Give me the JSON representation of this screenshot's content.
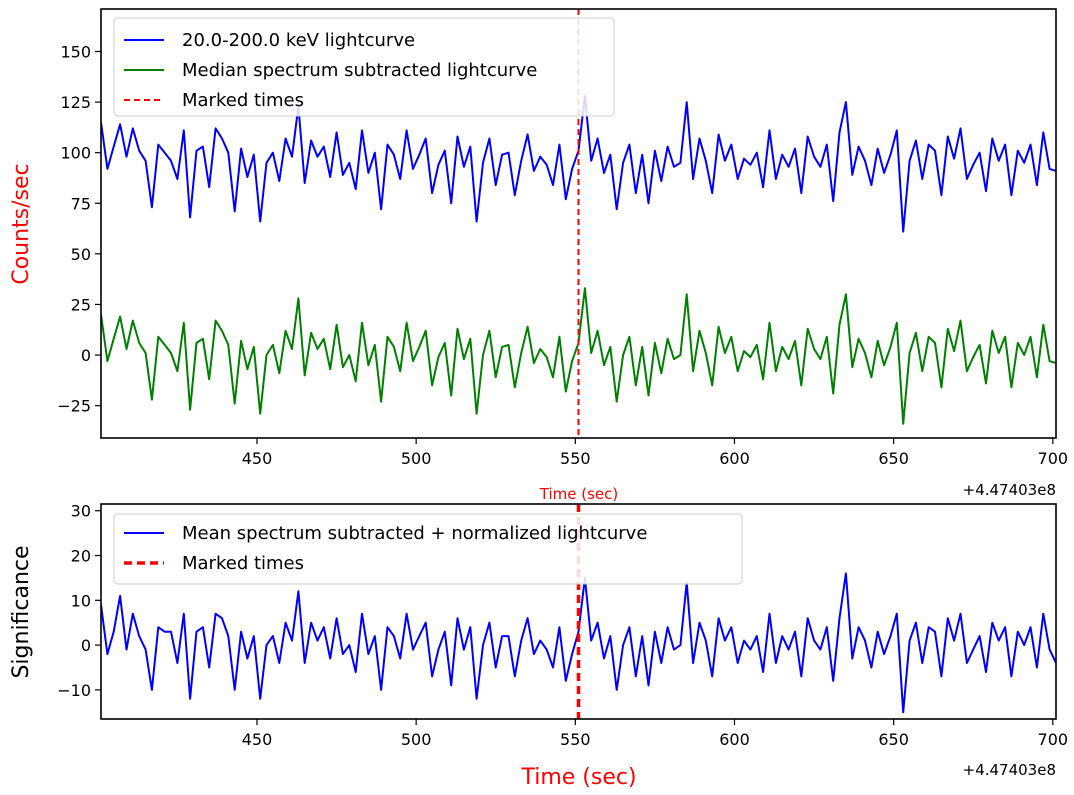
{
  "chart_data": [
    {
      "type": "line",
      "ylabel": "Counts/sec",
      "xlabel": "Time (sec)",
      "x_offset_label": "+4.47403e8",
      "xlim": [
        401,
        701
      ],
      "ylim": [
        -41,
        171
      ],
      "x_ticks": [
        450,
        500,
        550,
        600,
        650,
        700
      ],
      "y_ticks": [
        -25,
        0,
        25,
        50,
        75,
        100,
        125,
        150
      ],
      "y_tick_labels": [
        "−25",
        "0",
        "25",
        "50",
        "75",
        "100",
        "125",
        "150"
      ],
      "grid": false,
      "legend_position": "top-left",
      "legend": [
        "20.0-200.0 keV lightcurve",
        "Median spectrum subtracted lightcurve",
        "Marked times"
      ],
      "marked_time": 551,
      "x": [
        401,
        403,
        405,
        407,
        409,
        411,
        413,
        415,
        417,
        419,
        421,
        423,
        425,
        427,
        429,
        431,
        433,
        435,
        437,
        439,
        441,
        443,
        445,
        447,
        449,
        451,
        453,
        455,
        457,
        459,
        461,
        463,
        465,
        467,
        469,
        471,
        473,
        475,
        477,
        479,
        481,
        483,
        485,
        487,
        489,
        491,
        493,
        495,
        497,
        499,
        501,
        503,
        505,
        507,
        509,
        511,
        513,
        515,
        517,
        519,
        521,
        523,
        525,
        527,
        529,
        531,
        533,
        535,
        537,
        539,
        541,
        543,
        545,
        547,
        549,
        551,
        553,
        555,
        557,
        559,
        561,
        563,
        565,
        567,
        569,
        571,
        573,
        575,
        577,
        579,
        581,
        583,
        585,
        587,
        589,
        591,
        593,
        595,
        597,
        599,
        601,
        603,
        605,
        607,
        609,
        611,
        613,
        615,
        617,
        619,
        621,
        623,
        625,
        627,
        629,
        631,
        633,
        635,
        637,
        639,
        641,
        643,
        645,
        647,
        649,
        651,
        653,
        655,
        657,
        659,
        661,
        663,
        665,
        667,
        669,
        671,
        673,
        675,
        677,
        679,
        681,
        683,
        685,
        687,
        689,
        691,
        693,
        695,
        697,
        699,
        701
      ],
      "series": [
        {
          "name": "20.0-200.0 keV lightcurve",
          "color": "#0000ff",
          "values": [
            115,
            92,
            103,
            114,
            98,
            112,
            101,
            96,
            73,
            104,
            100,
            96,
            87,
            111,
            68,
            101,
            103,
            83,
            112,
            107,
            100,
            71,
            102,
            88,
            99,
            66,
            95,
            100,
            86,
            107,
            98,
            123,
            85,
            106,
            98,
            103,
            88,
            110,
            89,
            95,
            82,
            111,
            90,
            100,
            72,
            104,
            99,
            87,
            111,
            92,
            99,
            107,
            80,
            94,
            101,
            75,
            108,
            93,
            103,
            66,
            95,
            107,
            84,
            99,
            100,
            79,
            96,
            109,
            91,
            98,
            94,
            84,
            104,
            77,
            92,
            101,
            128,
            96,
            107,
            90,
            99,
            72,
            95,
            104,
            80,
            99,
            75,
            101,
            86,
            103,
            93,
            95,
            125,
            87,
            107,
            96,
            80,
            109,
            96,
            104,
            87,
            97,
            94,
            100,
            83,
            111,
            87,
            99,
            93,
            102,
            80,
            108,
            98,
            93,
            104,
            76,
            110,
            125,
            89,
            103,
            96,
            84,
            102,
            90,
            99,
            111,
            61,
            96,
            106,
            87,
            104,
            101,
            79,
            108,
            97,
            112,
            87,
            94,
            100,
            81,
            107,
            96,
            104,
            79,
            101,
            95,
            104,
            84,
            110,
            92,
            91
          ]
        },
        {
          "name": "Median spectrum subtracted lightcurve",
          "color": "#008000",
          "values": [
            20,
            -3,
            8,
            19,
            3,
            17,
            6,
            1,
            -22,
            9,
            5,
            1,
            -8,
            16,
            -27,
            6,
            8,
            -12,
            17,
            12,
            5,
            -24,
            7,
            -7,
            4,
            -29,
            0,
            5,
            -9,
            12,
            3,
            28,
            -10,
            11,
            3,
            8,
            -7,
            15,
            -6,
            0,
            -13,
            16,
            -5,
            5,
            -23,
            9,
            4,
            -8,
            16,
            -3,
            4,
            12,
            -15,
            -1,
            6,
            -20,
            13,
            -2,
            8,
            -29,
            0,
            12,
            -11,
            4,
            5,
            -16,
            1,
            14,
            -4,
            3,
            -1,
            -11,
            9,
            -18,
            -3,
            6,
            33,
            1,
            12,
            -5,
            4,
            -23,
            0,
            9,
            -15,
            4,
            -20,
            6,
            -9,
            8,
            -2,
            0,
            30,
            -8,
            12,
            1,
            -15,
            14,
            1,
            9,
            -8,
            2,
            -1,
            5,
            -12,
            16,
            -8,
            4,
            -2,
            7,
            -15,
            13,
            3,
            -2,
            9,
            -19,
            15,
            30,
            -6,
            8,
            1,
            -11,
            7,
            -5,
            4,
            16,
            -34,
            1,
            11,
            -8,
            9,
            6,
            -16,
            13,
            2,
            17,
            -8,
            -1,
            5,
            -14,
            12,
            1,
            9,
            -16,
            6,
            0,
            9,
            -11,
            15,
            -3,
            -4
          ]
        }
      ]
    },
    {
      "type": "line",
      "ylabel": "Significance",
      "xlabel": "Time (sec)",
      "x_offset_label": "+4.47403e8",
      "xlim": [
        401,
        701
      ],
      "ylim": [
        -16.5,
        31.5
      ],
      "x_ticks": [
        450,
        500,
        550,
        600,
        650,
        700
      ],
      "y_ticks": [
        -10,
        0,
        10,
        20,
        30
      ],
      "y_tick_labels": [
        "−10",
        "0",
        "10",
        "20",
        "30"
      ],
      "grid": false,
      "legend_position": "top-left",
      "legend": [
        "Mean spectrum subtracted + normalized lightcurve",
        "Marked times"
      ],
      "marked_time": 551,
      "x": [
        401,
        403,
        405,
        407,
        409,
        411,
        413,
        415,
        417,
        419,
        421,
        423,
        425,
        427,
        429,
        431,
        433,
        435,
        437,
        439,
        441,
        443,
        445,
        447,
        449,
        451,
        453,
        455,
        457,
        459,
        461,
        463,
        465,
        467,
        469,
        471,
        473,
        475,
        477,
        479,
        481,
        483,
        485,
        487,
        489,
        491,
        493,
        495,
        497,
        499,
        501,
        503,
        505,
        507,
        509,
        511,
        513,
        515,
        517,
        519,
        521,
        523,
        525,
        527,
        529,
        531,
        533,
        535,
        537,
        539,
        541,
        543,
        545,
        547,
        549,
        551,
        553,
        555,
        557,
        559,
        561,
        563,
        565,
        567,
        569,
        571,
        573,
        575,
        577,
        579,
        581,
        583,
        585,
        587,
        589,
        591,
        593,
        595,
        597,
        599,
        601,
        603,
        605,
        607,
        609,
        611,
        613,
        615,
        617,
        619,
        621,
        623,
        625,
        627,
        629,
        631,
        633,
        635,
        637,
        639,
        641,
        643,
        645,
        647,
        649,
        651,
        653,
        655,
        657,
        659,
        661,
        663,
        665,
        667,
        669,
        671,
        673,
        675,
        677,
        679,
        681,
        683,
        685,
        687,
        689,
        691,
        693,
        695,
        697,
        699,
        701
      ],
      "series": [
        {
          "name": "Mean spectrum subtracted + normalized lightcurve",
          "color": "#0000ff",
          "values": [
            9,
            -2,
            3,
            11,
            -1,
            7,
            2,
            -1,
            -10,
            4,
            3,
            3,
            -4,
            7,
            -12,
            3,
            4,
            -5,
            7,
            6,
            2,
            -10,
            3,
            -3,
            2,
            -12,
            0,
            2,
            -4,
            5,
            1,
            12,
            -4,
            5,
            1,
            4,
            -3,
            6,
            -2,
            0,
            -6,
            7,
            -2,
            2,
            -10,
            4,
            2,
            -3,
            7,
            -1,
            2,
            5,
            -7,
            -1,
            3,
            -9,
            6,
            -1,
            4,
            -12,
            0,
            5,
            -5,
            2,
            2,
            -7,
            1,
            6,
            -2,
            1,
            -1,
            -5,
            4,
            -8,
            -2,
            3,
            15,
            1,
            5,
            -3,
            2,
            -10,
            0,
            4,
            -7,
            2,
            -9,
            3,
            -4,
            4,
            -1,
            0,
            14,
            -4,
            5,
            1,
            -7,
            6,
            1,
            4,
            -4,
            1,
            -1,
            2,
            -6,
            7,
            -4,
            2,
            -1,
            3,
            -7,
            6,
            1,
            -1,
            4,
            -8,
            6,
            16,
            -3,
            4,
            1,
            -5,
            3,
            -2,
            2,
            7,
            -15,
            1,
            5,
            -4,
            4,
            3,
            -7,
            6,
            1,
            7,
            -4,
            -1,
            2,
            -6,
            5,
            1,
            4,
            -7,
            3,
            0,
            4,
            -5,
            7,
            -1,
            -4
          ]
        }
      ]
    }
  ]
}
